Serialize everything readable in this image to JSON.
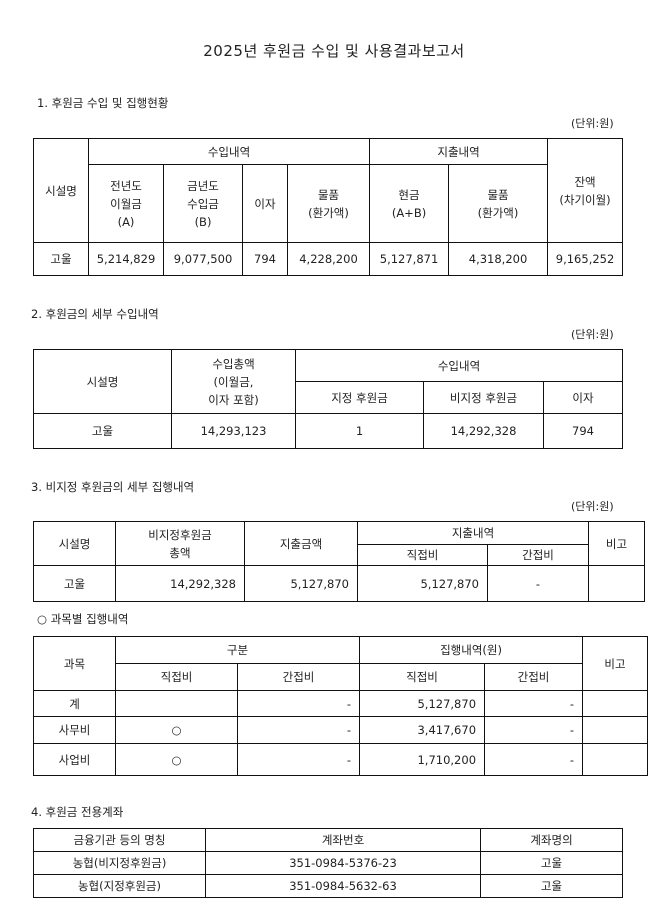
{
  "title": "2025년 후원금 수입 및 사용결과보고서",
  "unit_label": "(단위:원)",
  "section1": {
    "heading": "1. 후원금 수입 및 집행현황",
    "headers": {
      "facility": "시설명",
      "income_group": "수입내역",
      "expense_group": "지출내역",
      "prev_carryover": "전년도\n이월금\n(A)",
      "current_income": "금년도\n수입금\n(B)",
      "interest": "이자",
      "goods_income": "물품\n(환가액)",
      "cash": "현금\n(A+B)",
      "goods_expense": "물품\n(환가액)",
      "balance": "잔액\n(차기이월)"
    },
    "row": {
      "facility": "고울",
      "prev_carryover": "5,214,829",
      "current_income": "9,077,500",
      "interest": "794",
      "goods_income": "4,228,200",
      "cash": "5,127,871",
      "goods_expense": "4,318,200",
      "balance": "9,165,252"
    }
  },
  "section2": {
    "heading": "2. 후원금의 세부 수입내역",
    "headers": {
      "facility": "시설명",
      "total": "수입총액\n(이월금,\n이자 포함)",
      "income_group": "수입내역",
      "designated": "지정 후원금",
      "non_designated": "비지정 후원금",
      "interest": "이자"
    },
    "row": {
      "facility": "고울",
      "total": "14,293,123",
      "designated": "1",
      "non_designated": "14,292,328",
      "interest": "794"
    }
  },
  "section3": {
    "heading": "3. 비지정 후원금의 세부 집행내역",
    "headers": {
      "facility": "시설명",
      "total": "비지정후원금\n총액",
      "expense_amount": "지출금액",
      "expense_group": "지출내역",
      "direct": "직접비",
      "indirect": "간접비",
      "note": "비고"
    },
    "row": {
      "facility": "고울",
      "total": "14,292,328",
      "expense_amount": "5,127,870",
      "direct": "5,127,870",
      "indirect": "-",
      "note": ""
    },
    "subheading": "○ 과목별 집행내역",
    "sub_headers": {
      "item": "과목",
      "category_group": "구분",
      "execution_group": "집행내역(원)",
      "direct": "직접비",
      "indirect": "간접비",
      "note": "비고"
    },
    "sub_rows": [
      {
        "item": "계",
        "cat_direct": "",
        "cat_indirect": "-",
        "exec_direct": "5,127,870",
        "exec_indirect": "-",
        "note": ""
      },
      {
        "item": "사무비",
        "cat_direct": "○",
        "cat_indirect": "-",
        "exec_direct": "3,417,670",
        "exec_indirect": "-",
        "note": ""
      },
      {
        "item": "사업비",
        "cat_direct": "○",
        "cat_indirect": "-",
        "exec_direct": "1,710,200",
        "exec_indirect": "-",
        "note": ""
      }
    ]
  },
  "section4": {
    "heading": "4. 후원금 전용계좌",
    "headers": {
      "institution": "금융기관 등의 명칭",
      "account_number": "계좌번호",
      "account_holder": "계좌명의"
    },
    "rows": [
      {
        "institution": "농협(비지정후원금)",
        "account_number": "351-0984-5376-23",
        "account_holder": "고울"
      },
      {
        "institution": "농협(지정후원금)",
        "account_number": "351-0984-5632-63",
        "account_holder": "고울"
      }
    ]
  }
}
